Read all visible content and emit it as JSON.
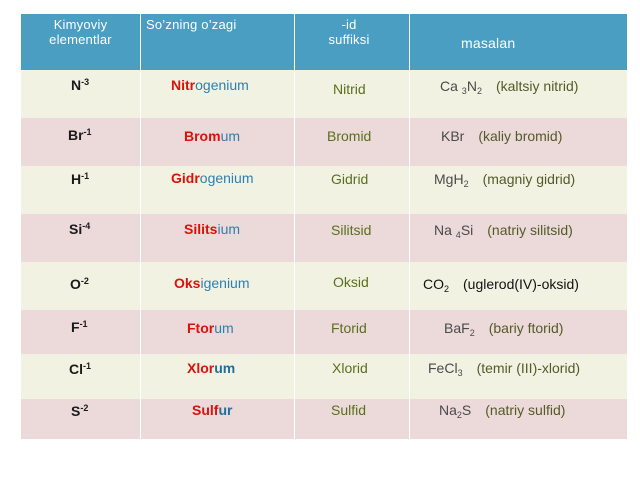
{
  "header": {
    "col1": [
      "Kimyoviy",
      "elementlar"
    ],
    "col2": "So’zning o’zagi",
    "col3": [
      "-id",
      "suffiksi"
    ],
    "col4": "masalan"
  },
  "rows": [
    {
      "el": "N",
      "ch": "-3",
      "stem": "Nitr",
      "rest": "ogenium",
      "suffix": "Nitrid",
      "ex": [
        {
          "t": "Ca "
        },
        {
          "s": "3"
        },
        {
          "t": "N"
        },
        {
          "s": "2"
        }
      ],
      "desc": "(kaltsiy nitrid)",
      "dark": false
    },
    {
      "el": "Br",
      "ch": "-1",
      "stem": "Brom",
      "rest": "um",
      "suffix": "Bromid",
      "ex": [
        {
          "t": "KBr"
        }
      ],
      "desc": "(kaliy bromid)",
      "dark": false
    },
    {
      "el": "H",
      "ch": "-1",
      "stem": "Gidr",
      "rest": "ogenium",
      "suffix": "Gidrid",
      "ex": [
        {
          "t": "MgH"
        },
        {
          "s": "2"
        }
      ],
      "desc": "(magniy gidrid)",
      "dark": false
    },
    {
      "el": "Si",
      "ch": "-4",
      "stem": "Silits",
      "rest": "ium",
      "suffix": "Silitsid",
      "ex": [
        {
          "t": "Na "
        },
        {
          "s": "4"
        },
        {
          "t": "Si"
        }
      ],
      "desc": "(natriy silitsid)",
      "dark": false
    },
    {
      "el": "O",
      "ch": "-2",
      "stem": "Oks",
      "rest": "igenium",
      "suffix": "Oksid",
      "ex": [
        {
          "t": "CO"
        },
        {
          "s": "2"
        }
      ],
      "desc": "(uglerod(IV)-oksid)",
      "dark": true
    },
    {
      "el": "F",
      "ch": "-1",
      "stem": "Ftor",
      "rest": "um",
      "suffix": "Ftorid",
      "ex": [
        {
          "t": "BaF"
        },
        {
          "s": "2"
        }
      ],
      "desc": "(bariy ftorid)",
      "dark": false
    },
    {
      "el": "Cl",
      "ch": "-1",
      "stem": "Xlor",
      "rest": "um",
      "suffix": "Xlorid",
      "ex": [
        {
          "t": "FeCl"
        },
        {
          "s": "3"
        }
      ],
      "desc": "(temir (III)-xlorid)",
      "dark": false
    },
    {
      "el": "S",
      "ch": "-2",
      "stem": "Sulf",
      "rest": "ur",
      "suffix": "Sulfid",
      "ex": [
        {
          "t": "Na"
        },
        {
          "s": "2"
        },
        {
          "t": "S"
        }
      ],
      "desc": "(natriy sulfid)",
      "dark": false
    }
  ],
  "colors": {
    "header_bg": "#4a9ec2",
    "row_pink": "#ecd9d9",
    "row_cream": "#f1f2e2",
    "stem_red": "#d9120a",
    "rest_blue": "#2e7fb0",
    "suffix_olive": "#5a6f1d"
  }
}
